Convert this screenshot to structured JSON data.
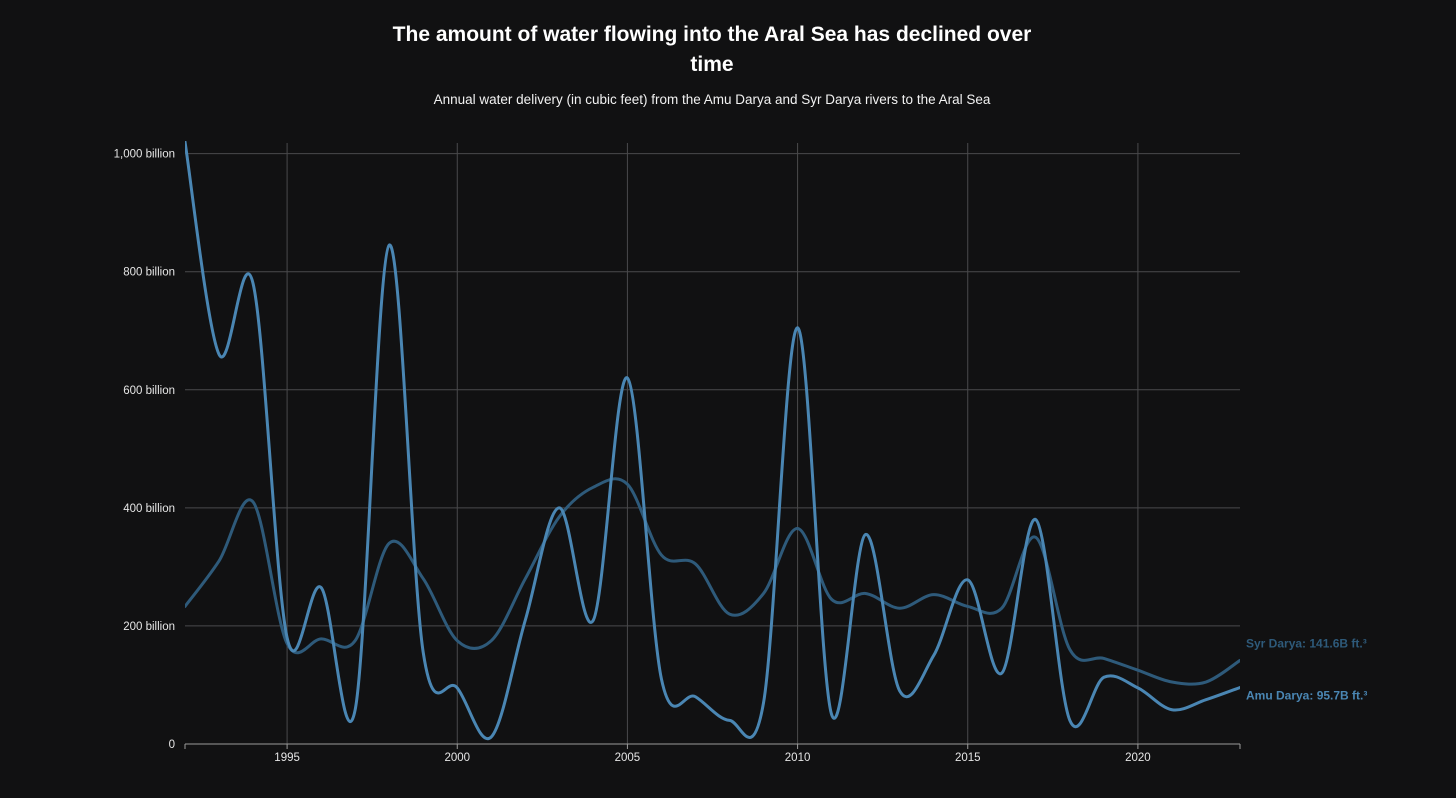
{
  "chart_data": {
    "type": "line",
    "title": "The amount of water flowing into the Aral Sea has declined over time",
    "subtitle": "Annual water delivery (in cubic feet) from the Amu Darya and Syr Darya rivers to the Aral Sea",
    "xlabel": "",
    "ylabel": "",
    "xlim": [
      1992,
      2023
    ],
    "ylim": [
      0,
      1000
    ],
    "x_ticks": [
      1995,
      2000,
      2005,
      2010,
      2015,
      2020
    ],
    "y_ticks": [
      0,
      200,
      400,
      600,
      800,
      1000
    ],
    "y_tick_labels": [
      "0",
      "200 billion",
      "400 billion",
      "600 billion",
      "800 billion",
      "1,000 billion"
    ],
    "grid": true,
    "x": [
      1992,
      1993,
      1994,
      1995,
      1996,
      1997,
      1998,
      1999,
      2000,
      2001,
      2002,
      2003,
      2004,
      2005,
      2006,
      2007,
      2008,
      2009,
      2010,
      2011,
      2012,
      2013,
      2014,
      2015,
      2016,
      2017,
      2018,
      2019,
      2020,
      2021,
      2022,
      2023
    ],
    "series": [
      {
        "name": "Amu Darya",
        "end_label": "Amu Darya: 95.7B ft.³",
        "color": "#4a86b3",
        "values": [
          1020,
          660,
          780,
          180,
          265,
          58,
          845,
          155,
          95,
          12,
          210,
          400,
          210,
          620,
          110,
          80,
          40,
          70,
          705,
          50,
          355,
          90,
          150,
          278,
          120,
          380,
          40,
          113,
          95,
          58,
          75,
          95.7
        ]
      },
      {
        "name": "Syr Darya",
        "end_label": "Syr Darya: 141.6B ft.³",
        "color": "#2e5a7a",
        "values": [
          233,
          310,
          410,
          170,
          178,
          175,
          340,
          280,
          175,
          175,
          280,
          385,
          435,
          440,
          320,
          305,
          220,
          255,
          365,
          245,
          255,
          230,
          253,
          233,
          230,
          350,
          160,
          145,
          125,
          105,
          105,
          141.6
        ]
      }
    ]
  }
}
